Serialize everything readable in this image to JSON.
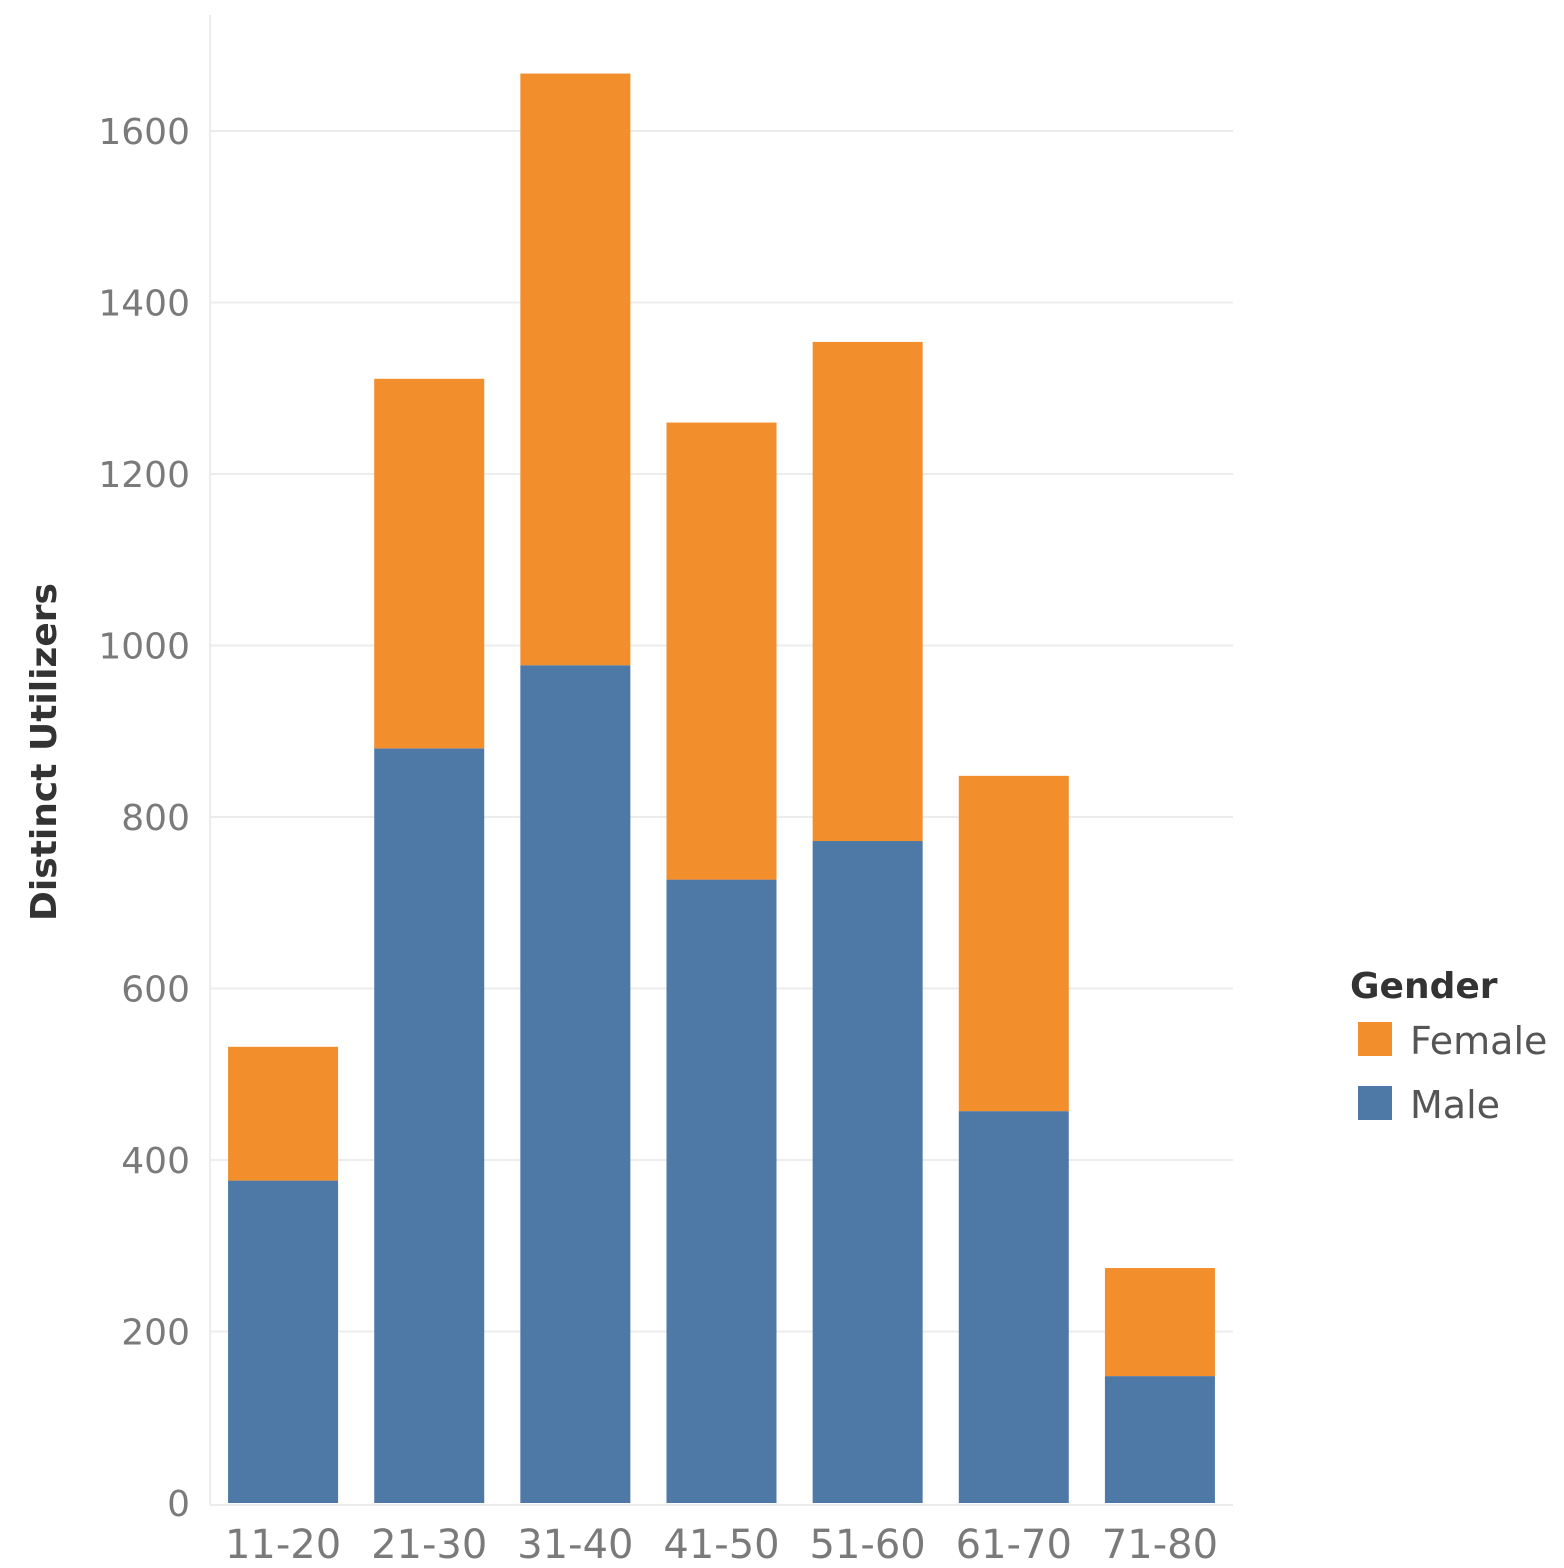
{
  "chart_data": {
    "type": "bar",
    "stacked": true,
    "categories": [
      "11-20",
      "21-30",
      "31-40",
      "41-50",
      "51-60",
      "61-70",
      "71-80"
    ],
    "series": [
      {
        "name": "Male",
        "color": "#4e79a7",
        "values": [
          376,
          880,
          977,
          727,
          772,
          457,
          148
        ]
      },
      {
        "name": "Female",
        "color": "#f28e2b",
        "values": [
          156,
          431,
          690,
          533,
          582,
          391,
          126
        ]
      }
    ],
    "totals": [
      532,
      1311,
      1667,
      1260,
      1354,
      848,
      274
    ],
    "title": "",
    "xlabel": "",
    "ylabel": "Distinct Utilizers",
    "ylim": [
      0,
      1700
    ],
    "yticks": [
      0,
      200,
      400,
      600,
      800,
      1000,
      1200,
      1400,
      1600
    ],
    "grid": true,
    "legend": {
      "title": "Gender",
      "position": "right",
      "items": [
        {
          "name": "Female",
          "color": "#f28e2b"
        },
        {
          "name": "Male",
          "color": "#4e79a7"
        }
      ]
    }
  }
}
